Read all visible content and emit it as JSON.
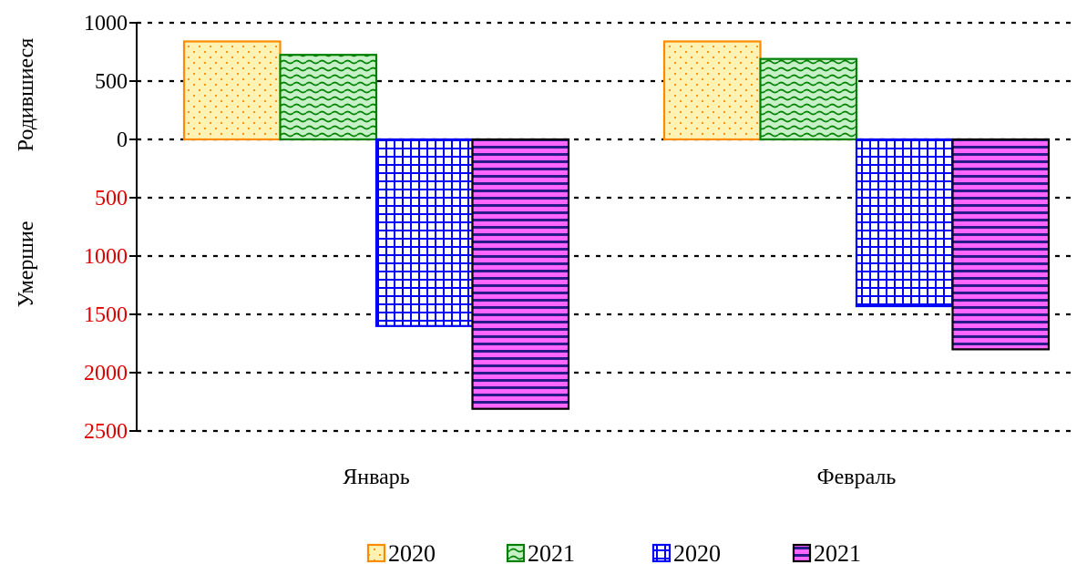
{
  "chart_data": {
    "type": "bar",
    "layout": "diverging-vertical",
    "categories": [
      "Январь",
      "Февраль"
    ],
    "axis_titles": {
      "upper": "Родившиеся",
      "lower": "Умершие"
    },
    "upper_ticks": [
      "1000",
      "500",
      "0"
    ],
    "lower_ticks": [
      "500",
      "1000",
      "1500",
      "2000",
      "2500"
    ],
    "ylim_upper": 1000,
    "ylim_lower": 2500,
    "grid": true,
    "legend_position": "bottom",
    "series": [
      {
        "name": "2020",
        "group": "Родившиеся",
        "values": [
          840,
          840
        ],
        "fill": "#fff2b3",
        "stroke": "#ff8c00",
        "pattern": "dots"
      },
      {
        "name": "2021",
        "group": "Родившиеся",
        "values": [
          725,
          690
        ],
        "fill": "#c6f0c6",
        "stroke": "#008000",
        "pattern": "waves"
      },
      {
        "name": "2020",
        "group": "Умершие",
        "values": [
          1600,
          1430
        ],
        "fill": "#ffffff",
        "stroke": "#0000ff",
        "pattern": "grid"
      },
      {
        "name": "2021",
        "group": "Умершие",
        "values": [
          2310,
          1800
        ],
        "fill": "#ff66ff",
        "stroke": "#000000",
        "pattern": "stripes"
      }
    ],
    "colors": {
      "upper_ticks": "#000000",
      "lower_ticks": "#e00000",
      "gridline": "#000000"
    }
  }
}
